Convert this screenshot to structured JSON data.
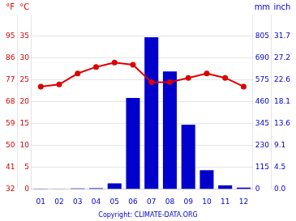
{
  "chart_data": {
    "type": "bar",
    "categories": [
      "01",
      "02",
      "03",
      "04",
      "05",
      "06",
      "07",
      "08",
      "09",
      "10",
      "11",
      "12"
    ],
    "series": [
      {
        "type": "bar",
        "color": "#0000cc",
        "axis": "y2",
        "values": [
          3,
          2,
          4,
          5,
          30,
          480,
          800,
          620,
          340,
          100,
          20,
          8
        ]
      },
      {
        "type": "line",
        "color": "#dd0000",
        "marker": "circle",
        "values": [
          23.5,
          24.0,
          26.5,
          28.0,
          29.0,
          28.5,
          24.5,
          24.5,
          25.5,
          26.5,
          25.5,
          23.5
        ]
      }
    ],
    "ylabel": "°C",
    "ylim": [
      0,
      40
    ],
    "yticks": [
      0,
      5,
      10,
      15,
      20,
      25,
      30,
      35
    ],
    "y2label": "mm",
    "y2lim": [
      0,
      920
    ],
    "y2ticks": [
      0,
      115,
      230,
      345,
      460,
      575,
      690,
      805
    ],
    "y3label": "°F",
    "y3lim": [
      0,
      40
    ],
    "y3ticks": [
      {
        "value": 0,
        "label": "32"
      },
      {
        "value": 5,
        "label": "41"
      },
      {
        "value": 10,
        "label": "50"
      },
      {
        "value": 15,
        "label": "59"
      },
      {
        "value": 20,
        "label": "68"
      },
      {
        "value": 25,
        "label": "77"
      },
      {
        "value": 30,
        "label": "86"
      },
      {
        "value": 35,
        "label": "95"
      }
    ],
    "y4label": "inch",
    "y4lim": [
      0,
      920
    ],
    "y4ticks": [
      {
        "value": 0,
        "label": "0.0"
      },
      {
        "value": 115,
        "label": "4.5"
      },
      {
        "value": 230,
        "label": "9.1"
      },
      {
        "value": 345,
        "label": "13.6"
      },
      {
        "value": 460,
        "label": "18.1"
      },
      {
        "value": 575,
        "label": "22.6"
      },
      {
        "value": 690,
        "label": "27.2"
      },
      {
        "value": 805,
        "label": "31.7"
      }
    ],
    "grid": true,
    "annotations": [
      "Copyright: CLIMATE-DATA.ORG"
    ]
  }
}
